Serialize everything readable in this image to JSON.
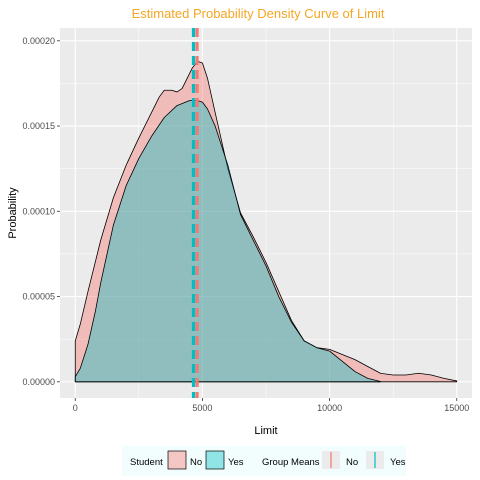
{
  "chart_data": {
    "type": "area",
    "title": "Estimated Probability Density Curve of Limit",
    "xlabel": "Limit",
    "ylabel": "Probability",
    "xlim": [
      -600,
      15600
    ],
    "ylim": [
      -9.5e-06,
      0.0002075
    ],
    "x_ticks": [
      0,
      5000,
      10000,
      15000
    ],
    "x_tick_labels": [
      "0",
      "5000",
      "10000",
      "15000"
    ],
    "y_ticks": [
      0,
      5e-05,
      0.0001,
      0.00015,
      0.0002
    ],
    "y_tick_labels": [
      "0.00000",
      "0.00005",
      "0.00010",
      "0.00015",
      "0.00020"
    ],
    "grid": true,
    "legend_position": "bottom",
    "colors": {
      "No": "#f8766d",
      "Yes": "#00bfc4",
      "title": "#f5a623",
      "panel": "#ebebeb",
      "grid": "#ffffff",
      "legend_bg": "#f2fdfd"
    },
    "series": [
      {
        "name": "No",
        "x": [
          0,
          200,
          500,
          1000,
          1500,
          2000,
          2500,
          3000,
          3300,
          3500,
          3800,
          4000,
          4200,
          4400,
          4600,
          4800,
          5000,
          5200,
          5500,
          6000,
          6500,
          7000,
          7500,
          8000,
          8500,
          9000,
          9500,
          10000,
          10500,
          11000,
          11500,
          12000,
          12500,
          13000,
          13500,
          14000,
          14500,
          15000
        ],
        "values": [
          2.4e-05,
          3.4e-05,
          5.3e-05,
          8.3e-05,
          0.000108,
          0.000127,
          0.000143,
          0.000158,
          0.000167,
          0.000171,
          0.000171,
          0.00017,
          0.000172,
          0.000178,
          0.000184,
          0.000188,
          0.000187,
          0.000178,
          0.000158,
          0.000125,
          9.9e-05,
          8.5e-05,
          7e-05,
          5.3e-05,
          3.6e-05,
          2.4e-05,
          2e-05,
          1.9e-05,
          1.6e-05,
          1.3e-05,
          9e-06,
          5e-06,
          4e-06,
          4e-06,
          5e-06,
          4e-06,
          2e-06,
          5e-07
        ]
      },
      {
        "name": "Yes",
        "x": [
          0,
          200,
          500,
          800,
          1000,
          1500,
          2000,
          2500,
          3000,
          3500,
          4000,
          4500,
          4800,
          5000,
          5200,
          5500,
          6000,
          6500,
          7000,
          7500,
          8000,
          8500,
          9000,
          9500,
          10000,
          10500,
          11000,
          11500,
          12000
        ],
        "values": [
          3e-06,
          8e-06,
          2.2e-05,
          4.2e-05,
          5.8e-05,
          9.2e-05,
          0.000115,
          0.000131,
          0.000144,
          0.000155,
          0.000162,
          0.000165,
          0.000165,
          0.000164,
          0.00016,
          0.00015,
          0.000127,
          9.8e-05,
          8.3e-05,
          6.8e-05,
          5e-05,
          3.5e-05,
          2.4e-05,
          2e-05,
          1.8e-05,
          1.2e-05,
          6e-06,
          2e-06,
          2e-07
        ]
      }
    ],
    "group_means": [
      {
        "name": "No",
        "value": 4788
      },
      {
        "name": "Yes",
        "value": 4648
      }
    ],
    "legend": {
      "fill_title": "Student",
      "fill_items": [
        "No",
        "Yes"
      ],
      "line_title": "Group Means",
      "line_items": [
        "No",
        "Yes"
      ]
    }
  }
}
